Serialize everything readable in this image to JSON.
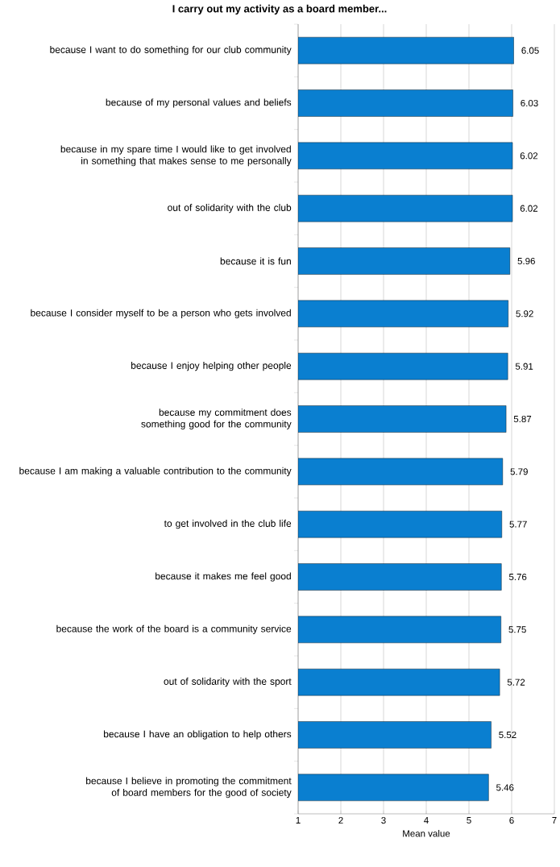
{
  "chart_data": {
    "type": "bar",
    "orientation": "horizontal",
    "title": "I carry out my activity as a board member...",
    "xlabel": "Mean value",
    "categories": [
      "because I want to do something for our club community",
      "because of my personal values and beliefs",
      "because in my spare time I would like to get involved in something that makes sense to me personally",
      "out of solidarity with the club",
      "because it is fun",
      "because I consider myself to be a person who gets involved",
      "because I enjoy helping other people",
      "because my commitment does something good for the community",
      "because I am making a valuable contribution to the community",
      "to get involved in the club life",
      "because it makes me feel good",
      "because the work of the board is a community service",
      "out of solidarity with the sport",
      "because I have an obligation to help others",
      "because I believe in promoting the commitment of board members for the good of society"
    ],
    "values": [
      6.05,
      6.03,
      6.02,
      6.02,
      5.96,
      5.92,
      5.91,
      5.87,
      5.79,
      5.77,
      5.76,
      5.75,
      5.72,
      5.52,
      5.46
    ],
    "color": "#0a7fd0",
    "xlim": [
      1,
      7
    ],
    "xticks": [
      1,
      2,
      3,
      4,
      5,
      6,
      7
    ],
    "grid": "x",
    "data_labels": true
  }
}
